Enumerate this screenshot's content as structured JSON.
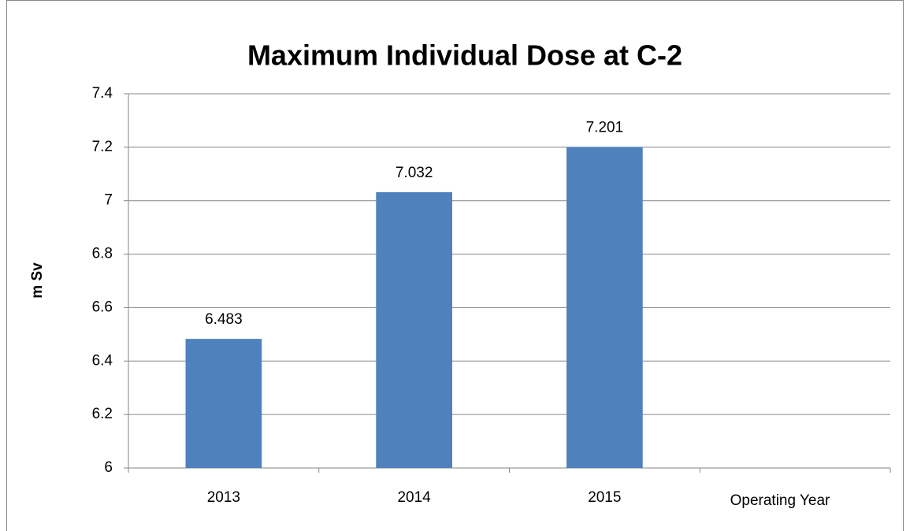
{
  "chart_data": {
    "type": "bar",
    "title": "Maximum Individual Dose at C-2",
    "y_label": "m Sv",
    "x_label": "Operating Year",
    "categories": [
      "2013",
      "2014",
      "2015",
      null
    ],
    "values": [
      6.483,
      7.032,
      7.201,
      null
    ],
    "color": "#4f81bd",
    "ylim": [
      6,
      7.4
    ],
    "yticks": [
      6,
      6.2,
      6.4,
      6.6,
      6.8,
      7,
      7.2,
      7.4
    ],
    "grid": true
  }
}
